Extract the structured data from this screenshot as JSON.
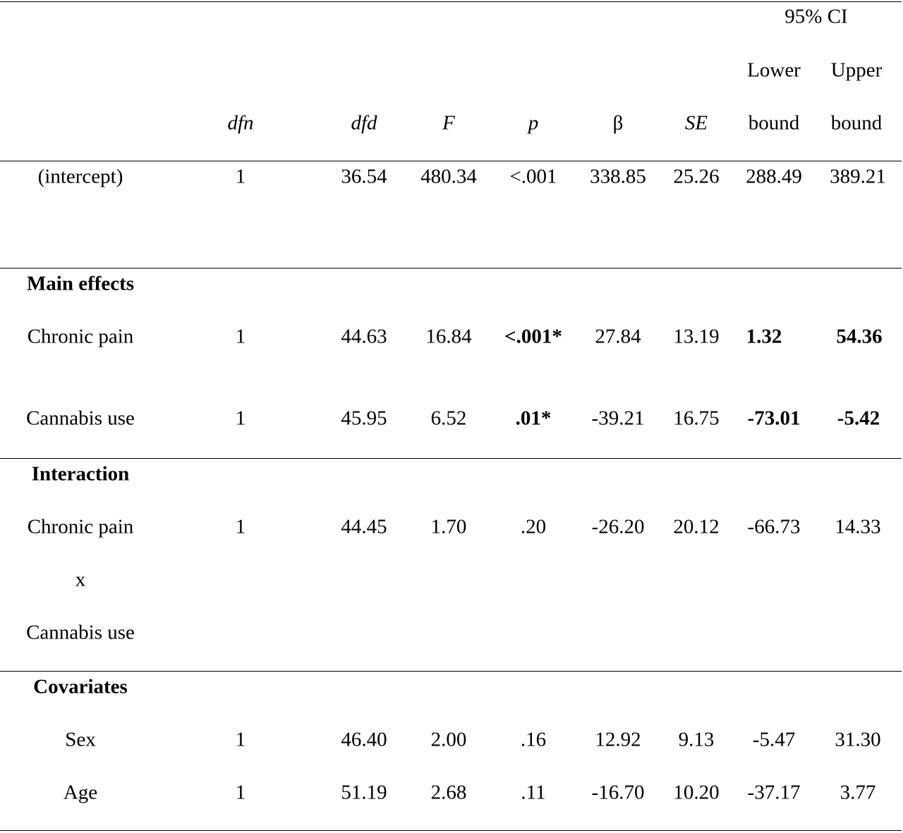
{
  "table": {
    "header": {
      "ci_group": "95% CI",
      "ci_lower_top": "Lower",
      "ci_upper_top": "Upper",
      "dfn": "dfn",
      "dfd": "dfd",
      "f": "F",
      "p": "p",
      "beta": "β",
      "se": "SE",
      "ci_lower_bottom": "bound",
      "ci_upper_bottom": "bound"
    },
    "columns": [
      "",
      "dfn",
      "dfd",
      "F",
      "p",
      "β",
      "SE",
      "95% CI Lower bound",
      "95% CI Upper bound"
    ],
    "intercept": {
      "label": "(intercept)",
      "dfn": "1",
      "dfd": "36.54",
      "f": "480.34",
      "p": "<.001",
      "beta": "338.85",
      "se": "25.26",
      "lower": "288.49",
      "upper": "389.21"
    },
    "sections": {
      "main_effects": "Main effects",
      "interaction": "Interaction",
      "covariates": "Covariates"
    },
    "rows": {
      "chronic_pain": {
        "label": "Chronic pain",
        "dfn": "1",
        "dfd": "44.63",
        "f": "16.84",
        "p": "<.001*",
        "beta": "27.84",
        "se": "13.19",
        "lower": "1.32",
        "upper": "54.36"
      },
      "cannabis_use": {
        "label": "Cannabis use",
        "dfn": "1",
        "dfd": "45.95",
        "f": "6.52",
        "p": ".01*",
        "beta": "-39.21",
        "se": "16.75",
        "lower": "-73.01",
        "upper": "-5.42"
      },
      "interaction": {
        "label_line1": "Chronic pain",
        "label_line2": "x",
        "label_line3": "Cannabis use",
        "dfn": "1",
        "dfd": "44.45",
        "f": "1.70",
        "p": ".20",
        "beta": "-26.20",
        "se": "20.12",
        "lower": "-66.73",
        "upper": "14.33"
      },
      "sex": {
        "label": "Sex",
        "dfn": "1",
        "dfd": "46.40",
        "f": "2.00",
        "p": ".16",
        "beta": "12.92",
        "se": "9.13",
        "lower": "-5.47",
        "upper": "31.30"
      },
      "age": {
        "label": "Age",
        "dfn": "1",
        "dfd": "51.19",
        "f": "2.68",
        "p": ".11",
        "beta": "-16.70",
        "se": "10.20",
        "lower": "-37.17",
        "upper": "3.77"
      }
    }
  }
}
